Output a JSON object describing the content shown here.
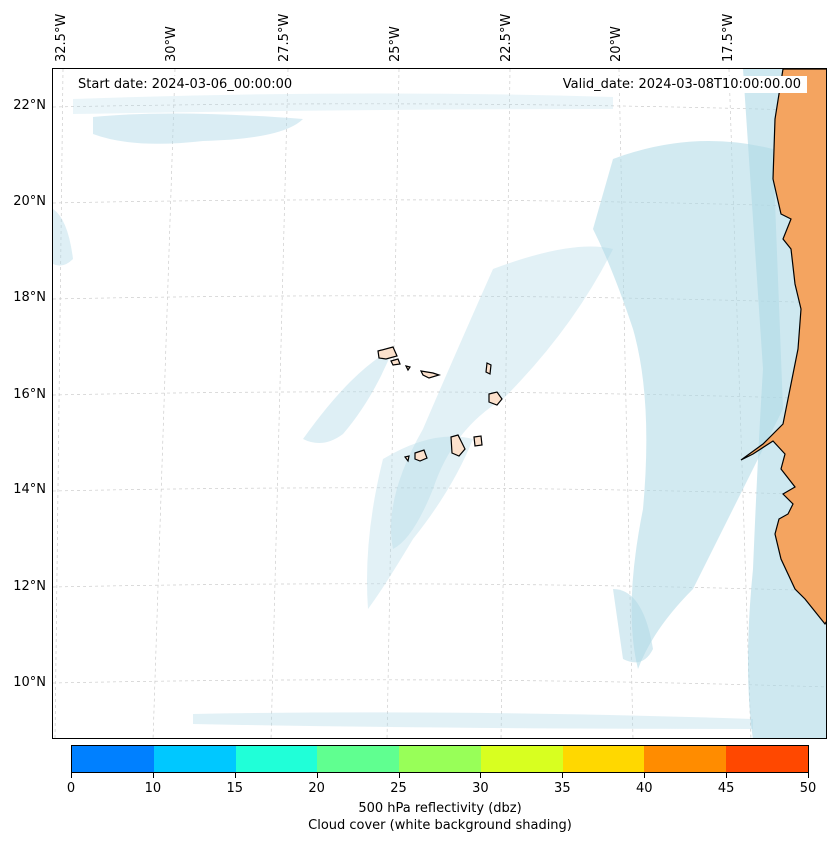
{
  "map": {
    "start_date": "Start date: 2024-03-06_00:00:00",
    "valid_date": "Valid_date: 2024-03-08T10:00:00.00",
    "lon_labels": [
      "32.5°W",
      "30°W",
      "27.5°W",
      "25°W",
      "22.5°W",
      "20°W",
      "17.5°W"
    ],
    "lat_labels": [
      "22°N",
      "20°N",
      "18°N",
      "16°N",
      "14°N",
      "12°N",
      "10°N"
    ],
    "land_color": "#f4a460",
    "cloud_color": "#add8e6"
  },
  "colorbar": {
    "colors": [
      "#0080ff",
      "#00c8ff",
      "#20ffd8",
      "#60ff90",
      "#98ff58",
      "#d8ff20",
      "#ffd800",
      "#ff8c00",
      "#ff4800"
    ],
    "ticks": [
      "0",
      "10",
      "15",
      "20",
      "25",
      "30",
      "35",
      "40",
      "45",
      "50"
    ],
    "title_line1": "500 hPa reflectivity (dbz)",
    "title_line2": "Cloud cover (white background shading)"
  }
}
